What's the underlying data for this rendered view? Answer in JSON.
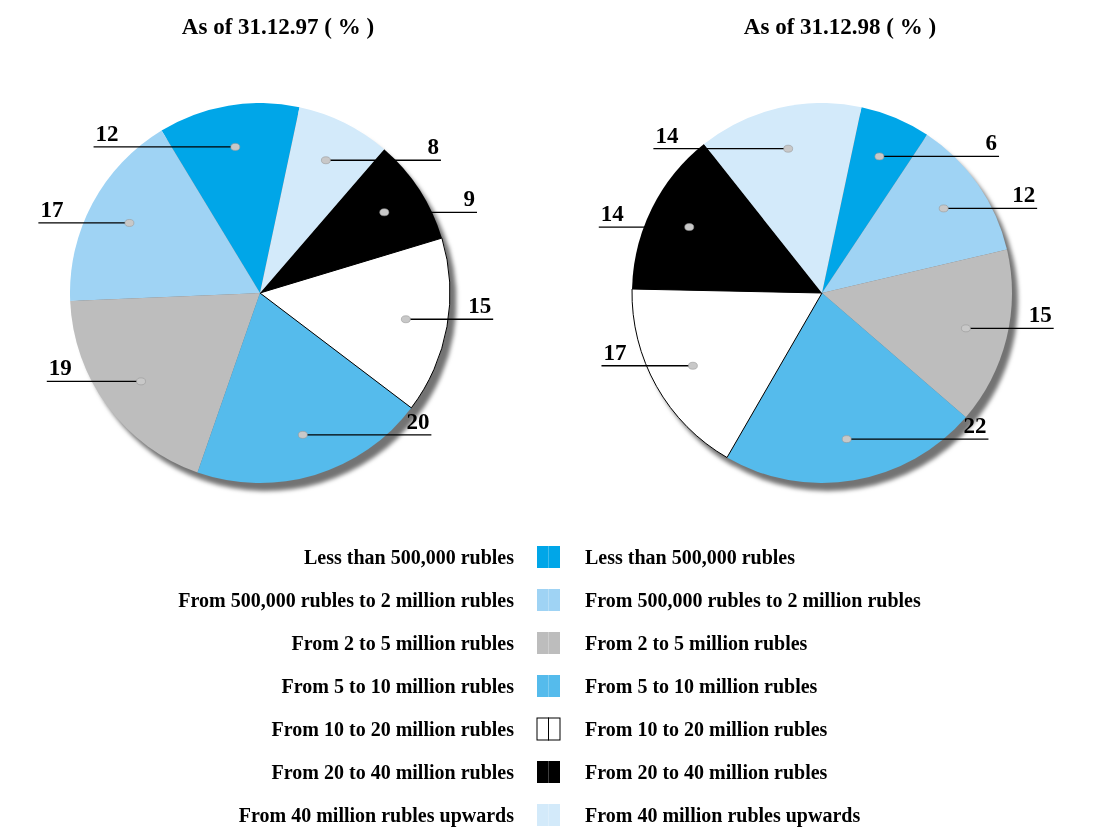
{
  "chart_data": [
    {
      "type": "pie",
      "title": "As of 31.12.97 ( % )",
      "categories": [
        "Less than 500,000 rubles",
        "From 500,000 rubles to 2 million rubles",
        "From 2 to 5 million rubles",
        "From 5 to 10 million rubles",
        "From 10 to 20 million rubles",
        "From 20 to 40 million rubles",
        "From 40 million rubles upwards"
      ],
      "values": [
        12,
        17,
        19,
        20,
        15,
        9,
        8
      ],
      "colors": [
        "#00a6e8",
        "#9fd3f4",
        "#bdbdbd",
        "#55bbec",
        "#ffffff",
        "#000000",
        "#d3eafa"
      ],
      "data_labels": true,
      "legend": "bottom"
    },
    {
      "type": "pie",
      "title": "As of 31.12.98 ( % )",
      "categories": [
        "Less than 500,000 rubles",
        "From 500,000 rubles to 2 million rubles",
        "From 2 to 5 million rubles",
        "From 5 to 10 million rubles",
        "From 10 to 20 million rubles",
        "From 20 to 40 million rubles",
        "From 40 million rubles upwards"
      ],
      "values": [
        6,
        12,
        15,
        22,
        17,
        14,
        14
      ],
      "colors": [
        "#00a6e8",
        "#9fd3f4",
        "#bdbdbd",
        "#55bbec",
        "#ffffff",
        "#000000",
        "#d3eafa"
      ],
      "data_labels": true,
      "legend": "bottom"
    }
  ]
}
